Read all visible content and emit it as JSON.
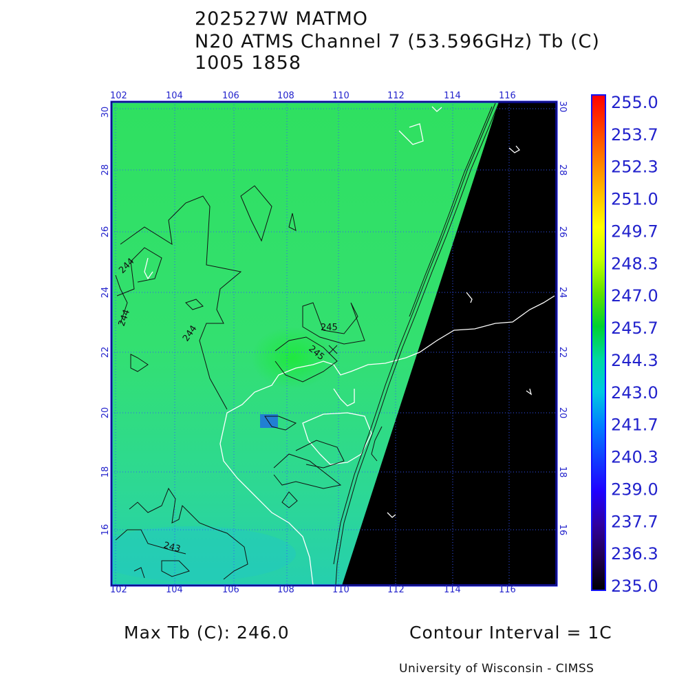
{
  "header": {
    "line1": "202527W MATMO",
    "line2": "N20 ATMS Channel 7 (53.596GHz) Tb (C)",
    "line3": "1005 1858"
  },
  "map": {
    "lon_ticks": [
      "102",
      "104",
      "106",
      "108",
      "110",
      "112",
      "114",
      "116"
    ],
    "lat_ticks": [
      "30",
      "28",
      "26",
      "24",
      "22",
      "20",
      "18",
      "16"
    ],
    "contour_labels": [
      {
        "text": "244"
      },
      {
        "text": "244"
      },
      {
        "text": "244"
      },
      {
        "text": "245"
      },
      {
        "text": "245"
      },
      {
        "text": "243"
      }
    ],
    "colors": {
      "field_main": "#33e070",
      "field_warm": "#22e64a",
      "field_cool": "#2ad2a4",
      "no_data": "#000000",
      "coast": "#ffffff",
      "grid": "#2244ff",
      "frame": "#1111ff"
    }
  },
  "colorbar": {
    "labels": [
      "255.0",
      "253.7",
      "252.3",
      "251.0",
      "249.7",
      "248.3",
      "247.0",
      "245.7",
      "244.3",
      "243.0",
      "241.7",
      "240.3",
      "239.0",
      "237.7",
      "236.3",
      "235.0"
    ],
    "stops": [
      "#ff0000",
      "#ff4000",
      "#ff8000",
      "#ffc000",
      "#ffff00",
      "#c0ff00",
      "#60e000",
      "#00d030",
      "#00d8a0",
      "#00c8e0",
      "#0080ff",
      "#1040ff",
      "#2000ff",
      "#3000a0",
      "#200050",
      "#000000"
    ]
  },
  "footer": {
    "max_tb": "Max Tb (C): 246.0",
    "contour_interval": "Contour Interval = 1C",
    "credit": "University of Wisconsin - CIMSS"
  }
}
